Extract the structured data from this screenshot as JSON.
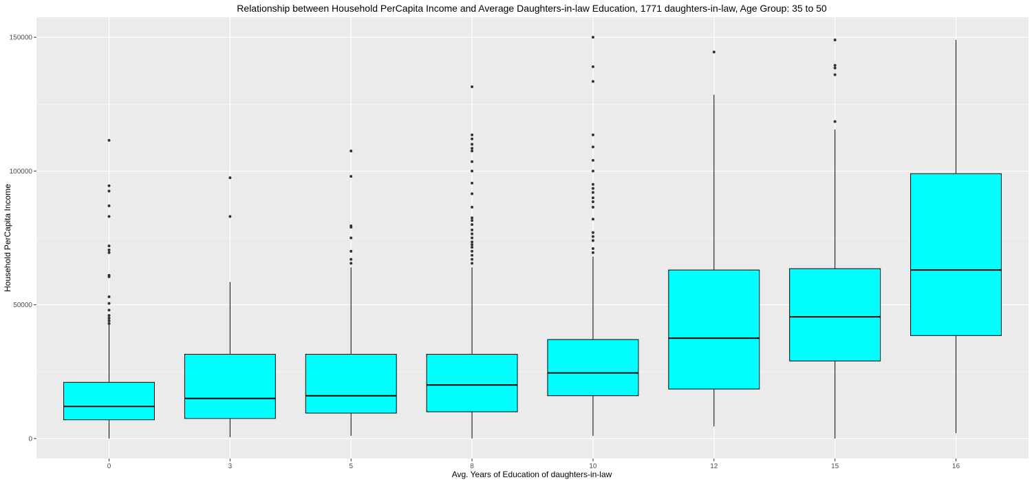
{
  "chart_data": {
    "type": "boxplot",
    "title": "Relationship between Household PerCapita Income and Average Daughters-in-law Education,  1771 daughters-in-law, Age Group: 35 to 50",
    "xlabel": "Avg. Years of Education of daughters-in-law",
    "ylabel": "Household PerCapita Income",
    "categories": [
      "0",
      "3",
      "5",
      "8",
      "10",
      "12",
      "15",
      "16"
    ],
    "yticks": [
      0,
      50000,
      100000,
      150000
    ],
    "ylim": [
      -7500,
      157500
    ],
    "grid": true,
    "colors": {
      "panel": "#ebebeb",
      "grid": "#ffffff",
      "box_fill": "#00ffff",
      "line": "#000000",
      "outlier": "#333333"
    },
    "boxes": [
      {
        "category": "0",
        "whisker_low": 0,
        "q1": 7000,
        "median": 12000,
        "q3": 21000,
        "whisker_high": 42500,
        "outliers": [
          43000,
          44000,
          45000,
          46000,
          48000,
          50500,
          53000,
          60500,
          61000,
          69500,
          70500,
          72000,
          83000,
          87000,
          92500,
          94500,
          111500
        ]
      },
      {
        "category": "3",
        "whisker_low": 500,
        "q1": 7500,
        "median": 15000,
        "q3": 31500,
        "whisker_high": 58500,
        "outliers": [
          83000,
          97500
        ]
      },
      {
        "category": "5",
        "whisker_low": 1000,
        "q1": 9500,
        "median": 16000,
        "q3": 31500,
        "whisker_high": 64000,
        "outliers": [
          65500,
          67000,
          70000,
          75000,
          79000,
          79500,
          98000,
          107500
        ]
      },
      {
        "category": "8",
        "whisker_low": 0,
        "q1": 10000,
        "median": 20000,
        "q3": 31500,
        "whisker_high": 64000,
        "outliers": [
          65500,
          67000,
          68500,
          70000,
          71500,
          72500,
          73500,
          75000,
          76500,
          78000,
          80000,
          81500,
          82500,
          86500,
          91500,
          95500,
          100000,
          103500,
          107500,
          108500,
          110000,
          112000,
          113500,
          131500
        ]
      },
      {
        "category": "10",
        "whisker_low": 1000,
        "q1": 16000,
        "median": 24500,
        "q3": 37000,
        "whisker_high": 68000,
        "outliers": [
          69500,
          71000,
          74000,
          75500,
          77000,
          82000,
          86500,
          88500,
          90000,
          92000,
          93500,
          95000,
          100000,
          104000,
          109000,
          113500,
          133500,
          139000,
          150000
        ]
      },
      {
        "category": "12",
        "whisker_low": 4500,
        "q1": 18500,
        "median": 37500,
        "q3": 63000,
        "whisker_high": 128500,
        "outliers": [
          144500
        ]
      },
      {
        "category": "15",
        "whisker_low": 0,
        "q1": 29000,
        "median": 45500,
        "q3": 63500,
        "whisker_high": 115500,
        "outliers": [
          118500,
          136000,
          138500,
          139500,
          149000
        ]
      },
      {
        "category": "16",
        "whisker_low": 2000,
        "q1": 38500,
        "median": 63000,
        "q3": 99000,
        "whisker_high": 149000,
        "outliers": []
      }
    ]
  }
}
